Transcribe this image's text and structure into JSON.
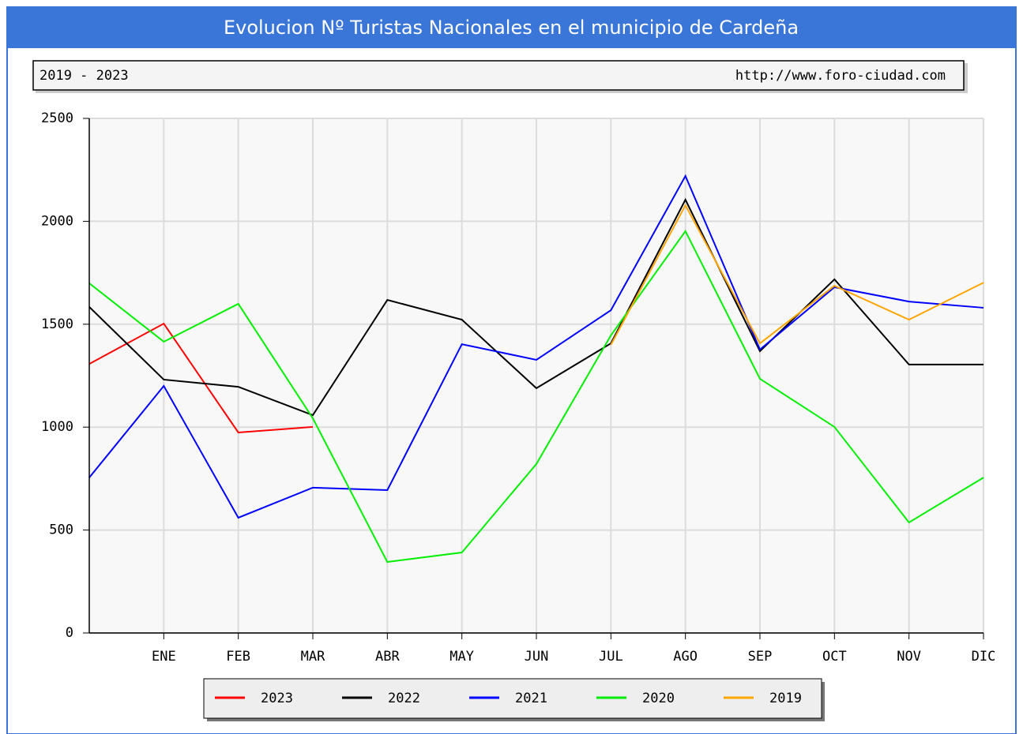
{
  "chart_data": {
    "type": "line",
    "title": "Evolucion Nº Turistas Nacionales en el municipio de Cardeña",
    "subtitle": "2019 - 2023",
    "source": "http://www.foro-ciudad.com",
    "categories": [
      null,
      "ENE",
      "FEB",
      "MAR",
      "ABR",
      "MAY",
      "JUN",
      "JUL",
      "AGO",
      "SEP",
      "OCT",
      "NOV",
      "DIC"
    ],
    "series": [
      {
        "name": "2023",
        "color": "#ff0000",
        "values": [
          1307,
          1503,
          974,
          1001,
          null,
          null,
          null,
          null,
          null,
          null,
          null,
          null,
          null
        ]
      },
      {
        "name": "2022",
        "color": "#000000",
        "values": [
          1584,
          1231,
          1196,
          1058,
          1618,
          1522,
          1189,
          1407,
          2105,
          1369,
          1718,
          1304,
          1304
        ]
      },
      {
        "name": "2021",
        "color": "#0000ff",
        "values": [
          755,
          1200,
          560,
          706,
          694,
          1403,
          1327,
          1568,
          2220,
          1377,
          1680,
          1610,
          1580
        ]
      },
      {
        "name": "2020",
        "color": "#00ee00",
        "values": [
          1699,
          1415,
          1599,
          1043,
          345,
          391,
          821,
          1446,
          1952,
          1235,
          1001,
          537,
          755
        ]
      },
      {
        "name": "2019",
        "color": "#ffa500",
        "values": [
          null,
          null,
          null,
          null,
          null,
          null,
          null,
          1400,
          2078,
          1407,
          1687,
          1522,
          1702
        ]
      }
    ],
    "ylim": [
      0,
      2500
    ],
    "yticks": [
      0,
      500,
      1000,
      1500,
      2000,
      2500
    ],
    "grid": true
  }
}
